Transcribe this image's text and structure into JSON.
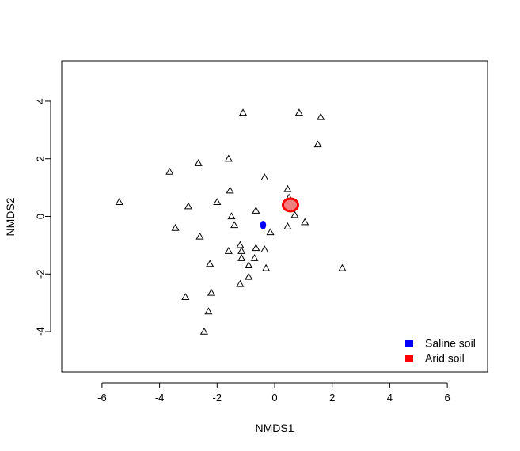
{
  "chart_data": {
    "type": "scatter",
    "title": "",
    "xlabel": "NMDS1",
    "ylabel": "NMDS2",
    "xlim": [
      -7.4,
      7.4
    ],
    "ylim": [
      -5.4,
      5.4
    ],
    "xticks": [
      -6,
      -4,
      -2,
      0,
      2,
      4,
      6
    ],
    "yticks": [
      -4,
      -2,
      0,
      2,
      4
    ],
    "legend_position": "bottom-right",
    "points": [
      {
        "x": -1.1,
        "y": 3.6
      },
      {
        "x": 0.85,
        "y": 3.6
      },
      {
        "x": 1.6,
        "y": 3.45
      },
      {
        "x": 1.5,
        "y": 2.5
      },
      {
        "x": -3.65,
        "y": 1.55
      },
      {
        "x": -2.65,
        "y": 1.85
      },
      {
        "x": -1.6,
        "y": 2.0
      },
      {
        "x": -0.35,
        "y": 1.35
      },
      {
        "x": -1.55,
        "y": 0.9
      },
      {
        "x": 0.45,
        "y": 0.95
      },
      {
        "x": 0.5,
        "y": 0.65
      },
      {
        "x": -5.4,
        "y": 0.5
      },
      {
        "x": -3.0,
        "y": 0.35
      },
      {
        "x": -2.0,
        "y": 0.5
      },
      {
        "x": -0.65,
        "y": 0.2
      },
      {
        "x": -1.5,
        "y": 0.0
      },
      {
        "x": 0.7,
        "y": 0.05
      },
      {
        "x": -3.45,
        "y": -0.4
      },
      {
        "x": -1.4,
        "y": -0.3
      },
      {
        "x": 0.45,
        "y": -0.35
      },
      {
        "x": 1.05,
        "y": -0.2
      },
      {
        "x": -0.15,
        "y": -0.55
      },
      {
        "x": -2.6,
        "y": -0.7
      },
      {
        "x": -1.2,
        "y": -1.0
      },
      {
        "x": -1.6,
        "y": -1.2
      },
      {
        "x": -1.15,
        "y": -1.2
      },
      {
        "x": -0.65,
        "y": -1.1
      },
      {
        "x": -0.35,
        "y": -1.15
      },
      {
        "x": -1.15,
        "y": -1.45
      },
      {
        "x": -0.7,
        "y": -1.45
      },
      {
        "x": -2.25,
        "y": -1.65
      },
      {
        "x": -0.9,
        "y": -1.7
      },
      {
        "x": -0.3,
        "y": -1.8
      },
      {
        "x": 2.35,
        "y": -1.8
      },
      {
        "x": -0.9,
        "y": -2.1
      },
      {
        "x": -1.2,
        "y": -2.35
      },
      {
        "x": -2.2,
        "y": -2.65
      },
      {
        "x": -3.1,
        "y": -2.8
      },
      {
        "x": -2.3,
        "y": -3.3
      },
      {
        "x": -2.45,
        "y": -4.0
      }
    ],
    "centroids": [
      {
        "name": "Saline soil",
        "x": -0.4,
        "y": -0.3,
        "color": "#0000ff"
      },
      {
        "name": "Arid soil",
        "x": 0.55,
        "y": 0.4,
        "color": "#ff0000"
      }
    ],
    "legend": [
      {
        "label": "Saline soil",
        "color": "#0000ff"
      },
      {
        "label": "Arid soil",
        "color": "#ff0000"
      }
    ]
  }
}
